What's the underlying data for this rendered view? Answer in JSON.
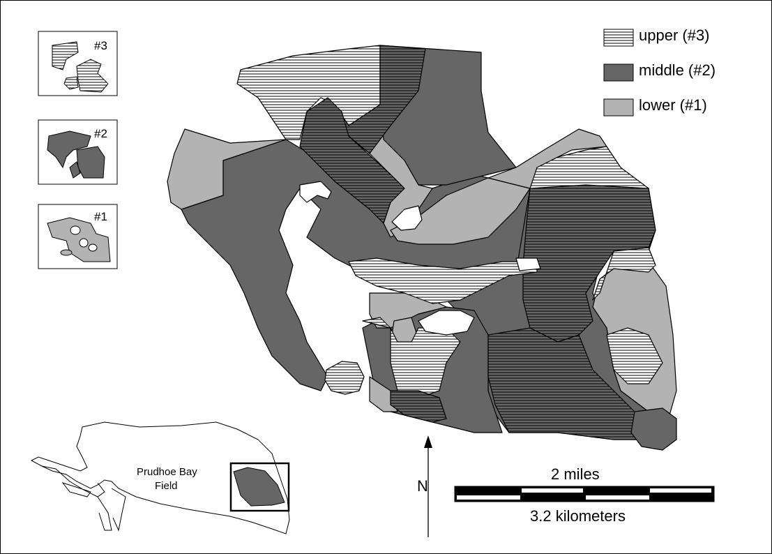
{
  "legend": {
    "items": [
      {
        "label": "upper (#3)",
        "pattern": "hatched"
      },
      {
        "label": "middle (#2)",
        "color": "#666666"
      },
      {
        "label": "lower (#1)",
        "color": "#b3b3b3"
      }
    ]
  },
  "thumbnails": [
    {
      "label": "#3",
      "pattern": "hatched"
    },
    {
      "label": "#2",
      "color": "#666666"
    },
    {
      "label": "#1",
      "color": "#b3b3b3"
    }
  ],
  "locator": {
    "field_label_line1": "Prudhoe Bay",
    "field_label_line2": "Field"
  },
  "north_label": "N",
  "scale": {
    "miles_label": "2 miles",
    "km_label": "3.2 kilometers"
  },
  "colors": {
    "upper": "#ffffff",
    "middle": "#666666",
    "lower": "#b3b3b3",
    "outline": "#000000"
  }
}
